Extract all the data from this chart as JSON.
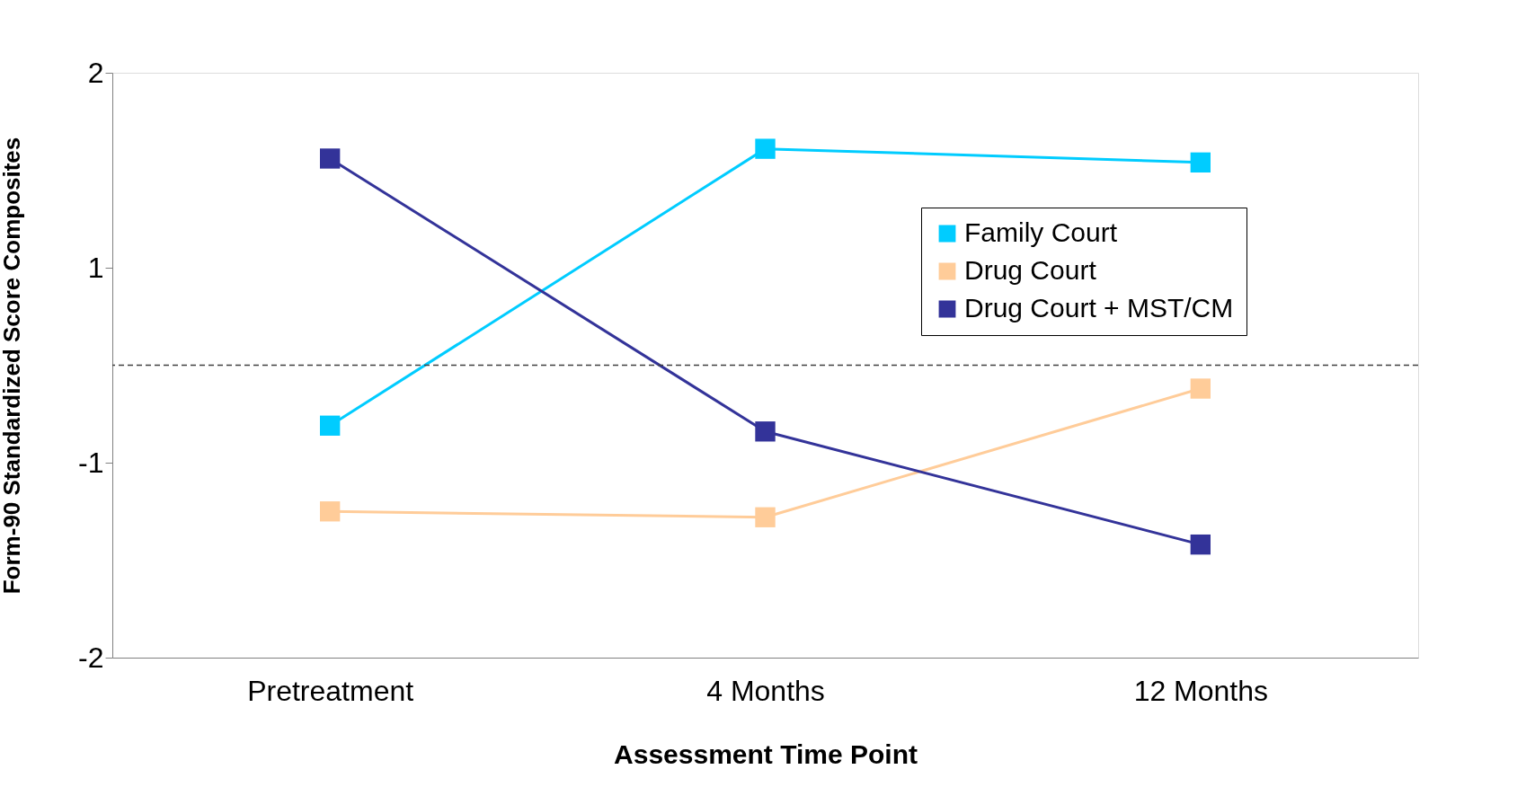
{
  "chart_data": {
    "type": "line",
    "xlabel": "Assessment Time Point",
    "ylabel": "Form-90 Standardized Score Composites",
    "categories": [
      "Pretreatment",
      "4 Months",
      "12 Months"
    ],
    "series": [
      {
        "name": "Family Court",
        "color": "#00ccff",
        "values": [
          -0.31,
          1.11,
          1.04
        ]
      },
      {
        "name": "Drug Court",
        "color": "#ffcc99",
        "values": [
          -0.75,
          -0.78,
          -0.12
        ]
      },
      {
        "name": "Drug Court + MST/CM",
        "color": "#333399",
        "values": [
          1.06,
          -0.34,
          -0.92
        ]
      }
    ],
    "ylim": [
      -1.5,
      1.5
    ],
    "yticks": [
      {
        "value": 1.5,
        "label": "2"
      },
      {
        "value": 0.5,
        "label": "1"
      },
      {
        "value": -0.5,
        "label": "-1"
      },
      {
        "value": -1.5,
        "label": "-2"
      }
    ],
    "ref_lines": [
      {
        "axis": "y",
        "value": 0,
        "color": "#404040",
        "line_style": "dashed"
      }
    ],
    "grid": false,
    "legend": "top right",
    "marker": "square",
    "line_style": "solid"
  }
}
